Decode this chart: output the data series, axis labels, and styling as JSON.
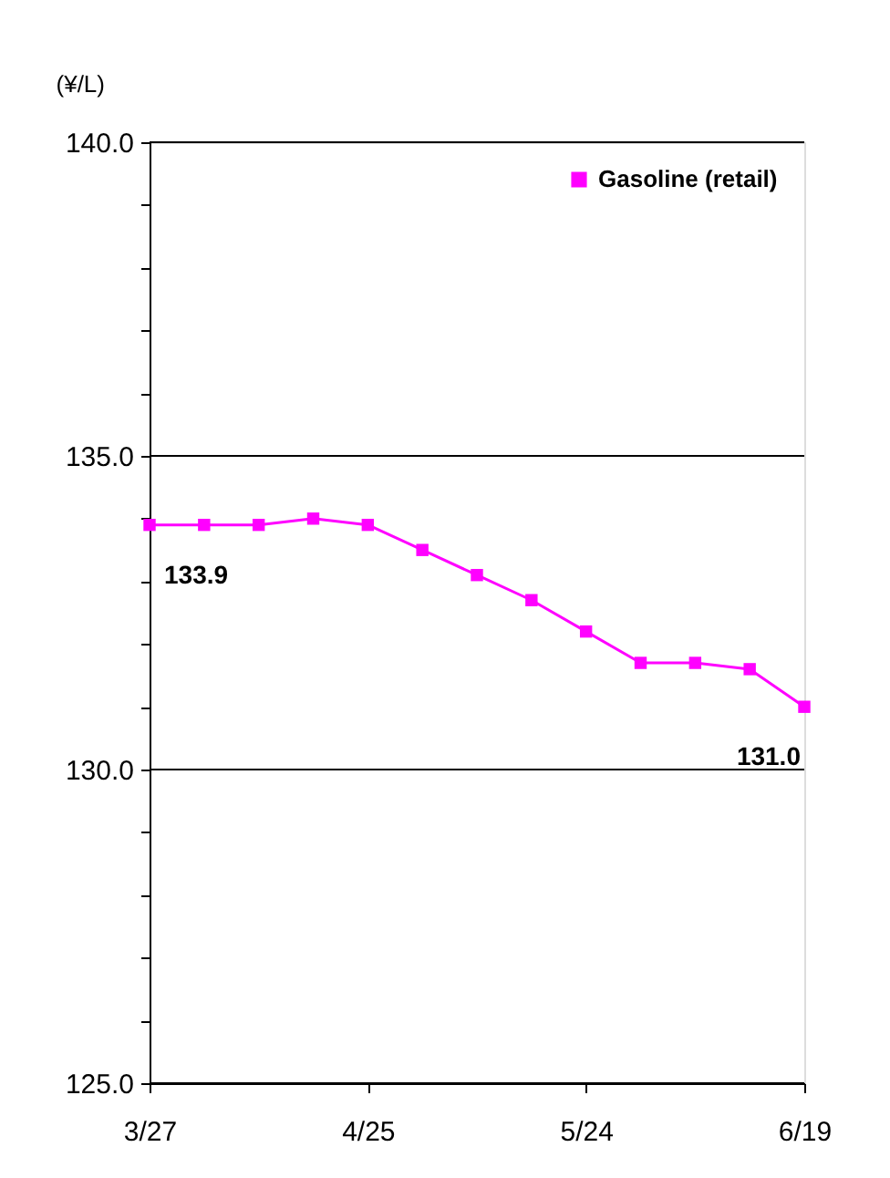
{
  "chart_data": {
    "type": "line",
    "ylabel": "(¥/L)",
    "categories": [
      "3/27",
      null,
      null,
      null,
      "4/25",
      null,
      null,
      null,
      "5/24",
      null,
      null,
      null,
      "6/19"
    ],
    "series": [
      {
        "name": "Gasoline (retail)",
        "color": "#ff00ff",
        "values": [
          133.9,
          133.9,
          133.9,
          134.0,
          133.9,
          133.5,
          133.1,
          132.7,
          132.2,
          131.7,
          131.7,
          131.6,
          131.0
        ],
        "value_labels": [
          "133.9",
          null,
          null,
          null,
          null,
          null,
          null,
          null,
          null,
          null,
          null,
          null,
          "131.0"
        ]
      }
    ],
    "ylim": [
      125.0,
      140.0
    ],
    "yticks": [
      {
        "value": 125,
        "label": "125.0"
      },
      {
        "value": 126,
        "label": null
      },
      {
        "value": 127,
        "label": null
      },
      {
        "value": 128,
        "label": null
      },
      {
        "value": 129,
        "label": null
      },
      {
        "value": 130,
        "label": "130.0"
      },
      {
        "value": 131,
        "label": null
      },
      {
        "value": 132,
        "label": null
      },
      {
        "value": 133,
        "label": null
      },
      {
        "value": 134,
        "label": null
      },
      {
        "value": 135,
        "label": "135.0"
      },
      {
        "value": 136,
        "label": null
      },
      {
        "value": 137,
        "label": null
      },
      {
        "value": 138,
        "label": null
      },
      {
        "value": 139,
        "label": null
      },
      {
        "value": 140,
        "label": "140.0"
      }
    ],
    "grid": "y",
    "legend": "top right",
    "marker": "square",
    "line_style": "solid"
  }
}
